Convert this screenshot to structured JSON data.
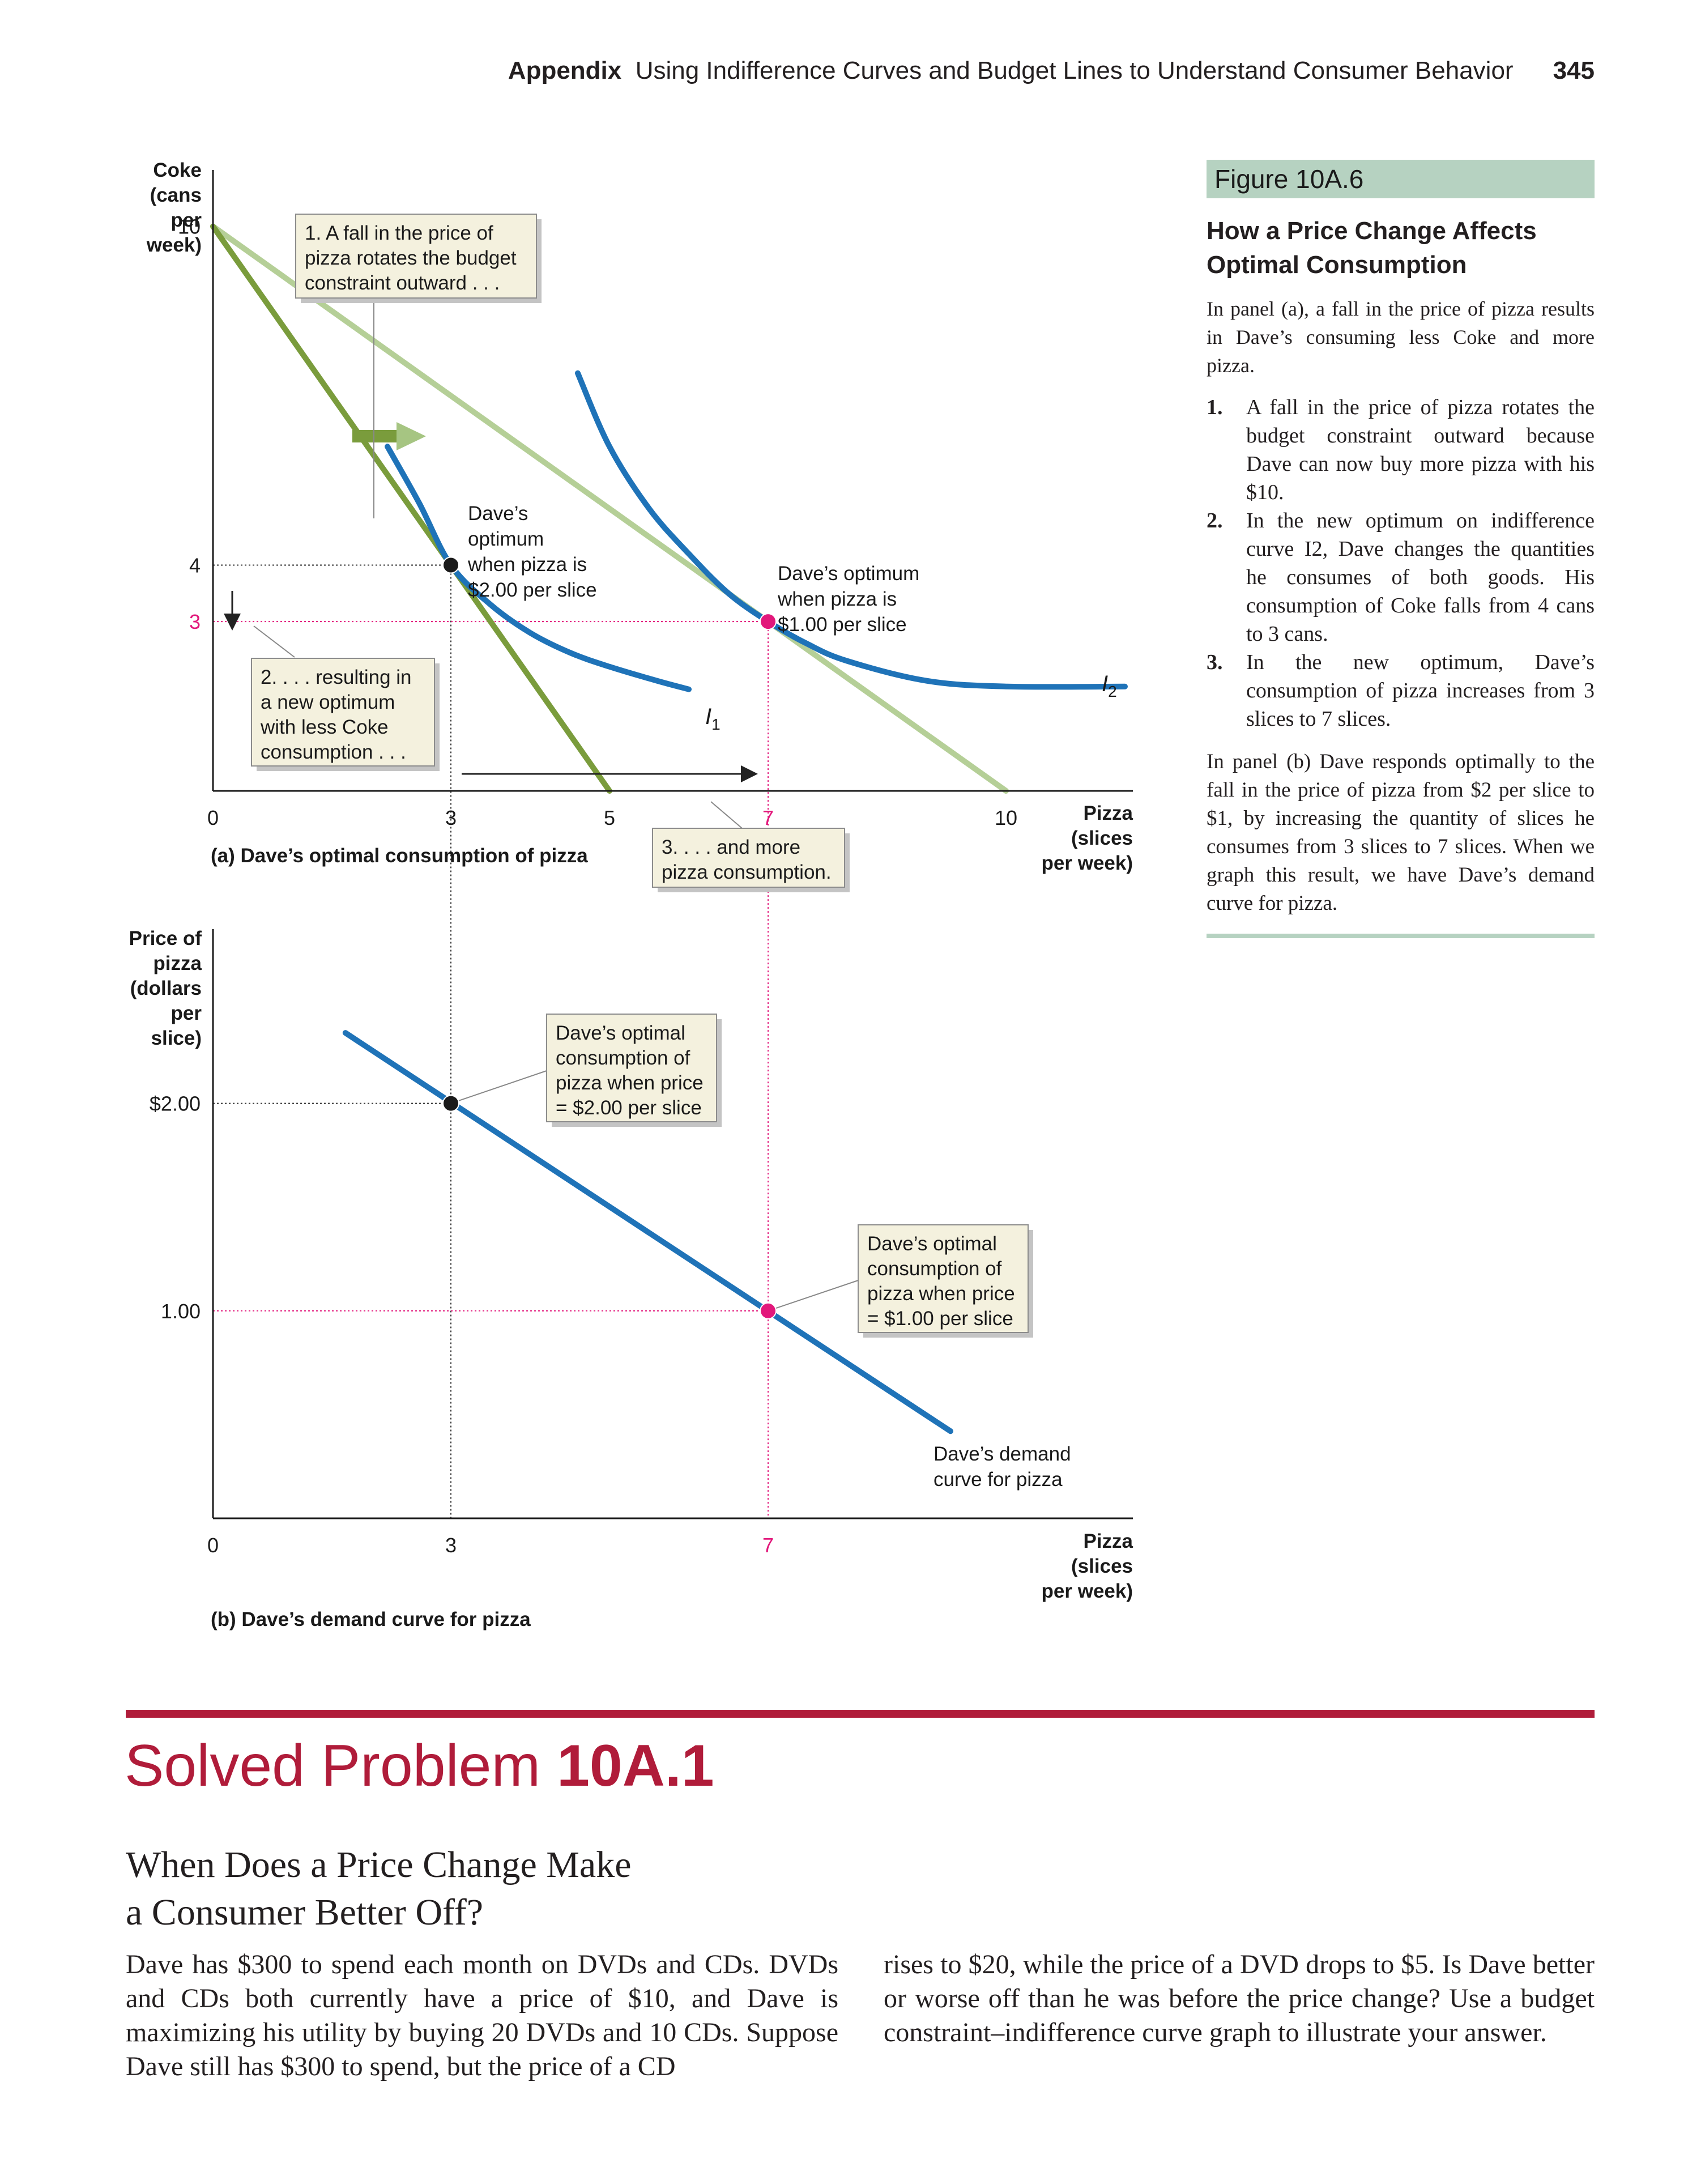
{
  "header": {
    "section": "Appendix",
    "title": "Using Indifference Curves and Budget Lines to Understand Consumer Behavior",
    "page_number": "345"
  },
  "figure": {
    "tag": "Figure 10A.6",
    "title": "How a Price Change Affects Optimal Consumption",
    "intro": "In panel (a), a fall in the price of pizza results in Dave’s consuming less Coke and more pizza.",
    "steps": [
      {
        "num": "1.",
        "text": "A fall in the price of pizza rotates the budget constraint outward because Dave can now buy more pizza with his $10."
      },
      {
        "num": "2.",
        "text": "In the new optimum on indifference curve I2, Dave changes the quantities he consumes of both goods. His consumption of Coke falls from 4 cans to 3 cans."
      },
      {
        "num": "3.",
        "text": "In the new optimum, Dave’s consumption of pizza increases from 3 slices to 7 slices."
      }
    ],
    "panel_b_text": "In panel (b) Dave responds optimally to the fall in the price of pizza from $2 per slice to $1, by increasing the quantity of slices he consumes from 3 slices to 7 slices. When we graph this result, we have Dave’s demand curve for pizza."
  },
  "chart_data": [
    {
      "type": "line",
      "panel_label": "(a) Dave’s optimal consumption of pizza",
      "ylabel": [
        "Coke",
        "(cans",
        "per",
        "week)"
      ],
      "xlabel": [
        "Pizza",
        "(slices",
        "per week)"
      ],
      "xlim": [
        0,
        11.6
      ],
      "ylim": [
        0,
        11
      ],
      "x_ticks": [
        "0",
        "3",
        "5",
        "7",
        "10"
      ],
      "x_tick_values": [
        0,
        3,
        5,
        7,
        10
      ],
      "y_ticks": [
        "10",
        "4",
        "3"
      ],
      "y_tick_values": [
        10,
        4,
        3
      ],
      "series": [
        {
          "key": "budget_old",
          "color": "#7a9c3c",
          "points": [
            [
              0,
              10
            ],
            [
              5,
              0
            ]
          ]
        },
        {
          "key": "budget_new",
          "color": "#b5cf97",
          "points": [
            [
              0,
              10
            ],
            [
              10,
              0
            ]
          ]
        },
        {
          "key": "indiff_1",
          "name": "I1",
          "color": "#1f73b8",
          "points": [
            [
              2.2,
              6.1
            ],
            [
              2.6,
              5.1
            ],
            [
              3,
              4
            ],
            [
              3.5,
              3.3
            ],
            [
              4,
              2.8
            ],
            [
              4.5,
              2.45
            ],
            [
              5,
              2.2
            ],
            [
              5.6,
              1.95
            ],
            [
              6,
              1.8
            ]
          ]
        },
        {
          "key": "indiff_2",
          "name": "I2",
          "color": "#1f73b8",
          "points": [
            [
              4.6,
              7.4
            ],
            [
              5,
              6.1
            ],
            [
              5.5,
              5.0
            ],
            [
              6,
              4.2
            ],
            [
              6.5,
              3.5
            ],
            [
              7,
              3
            ],
            [
              7.5,
              2.6
            ],
            [
              8,
              2.3
            ],
            [
              9,
              1.95
            ],
            [
              10,
              1.85
            ],
            [
              11.5,
              1.85
            ]
          ]
        }
      ],
      "optimum_points": [
        {
          "x": 3,
          "y": 4,
          "color": "#1a1a1a"
        },
        {
          "x": 7,
          "y": 3,
          "color": "#e2187b"
        }
      ],
      "annotations": [
        {
          "key": "a1",
          "lines": [
            "1. A fall in the price of",
            "pizza rotates the budget",
            "constraint outward . . ."
          ]
        },
        {
          "key": "a2",
          "lines": [
            "2. . . . resulting in",
            "a new optimum",
            "with less Coke",
            "consumption . . ."
          ]
        },
        {
          "key": "a3",
          "lines": [
            "3. . . . and more",
            "pizza consumption."
          ]
        },
        {
          "key": "opt1",
          "lines": [
            "Dave’s",
            "optimum",
            "when pizza is",
            "$2.00 per slice"
          ]
        },
        {
          "key": "opt2",
          "lines": [
            "Dave’s optimum",
            "when pizza is",
            "$1.00 per slice"
          ]
        }
      ]
    },
    {
      "type": "line",
      "panel_label": "(b) Dave’s demand curve for pizza",
      "ylabel": [
        "Price of",
        "pizza",
        "(dollars",
        "per",
        "slice)"
      ],
      "xlabel": [
        "Pizza",
        "(slices",
        "per week)"
      ],
      "xlim": [
        0,
        11.6
      ],
      "ylim": [
        0,
        2.84
      ],
      "x_ticks": [
        "0",
        "3",
        "7"
      ],
      "x_tick_values": [
        0,
        3,
        7
      ],
      "y_ticks": [
        "$2.00",
        "1.00"
      ],
      "y_tick_values": [
        2,
        1
      ],
      "series": [
        {
          "key": "demand",
          "name": "Dave’s demand curve for pizza",
          "color": "#1f73b8",
          "points": [
            [
              1.67,
              2.34
            ],
            [
              9.3,
              0.42
            ]
          ]
        }
      ],
      "optimum_points": [
        {
          "x": 3,
          "y": 2,
          "color": "#1a1a1a"
        },
        {
          "x": 7,
          "y": 1,
          "color": "#e2187b"
        }
      ],
      "annotations": [
        {
          "key": "b1",
          "lines": [
            "Dave’s optimal",
            "consumption of",
            "pizza when price",
            "= $2.00 per slice"
          ]
        },
        {
          "key": "b2",
          "lines": [
            "Dave’s optimal",
            "consumption of",
            "pizza when price",
            "= $1.00 per slice"
          ]
        },
        {
          "key": "curve",
          "lines": [
            "Dave’s demand",
            "curve for pizza"
          ]
        }
      ]
    }
  ],
  "colors": {
    "accent_red": "#b01c3a",
    "caption_green": "#b6d2c1",
    "curve_blue": "#1f73b8",
    "old_budget_green": "#7a9c3c",
    "new_budget_green": "#b5cf97",
    "magenta": "#e2187b",
    "box_fill": "#f4f1de"
  },
  "solved_problem": {
    "label": "Solved Problem",
    "number": "10A.1",
    "title_line1": "When Does a Price Change Make",
    "title_line2": "a Consumer Better Off?",
    "col1": "Dave has $300 to spend each month on DVDs and CDs. DVDs and CDs both currently have a price of $10, and Dave is maximizing his utility by buying 20 DVDs and 10 CDs. Suppose Dave still has $300 to spend, but the price of a CD",
    "col2": "rises to $20, while the price of a DVD drops to $5. Is Dave better or worse off than he was before the price change? Use a budget constraint–indifference curve graph to illustrate your answer."
  }
}
